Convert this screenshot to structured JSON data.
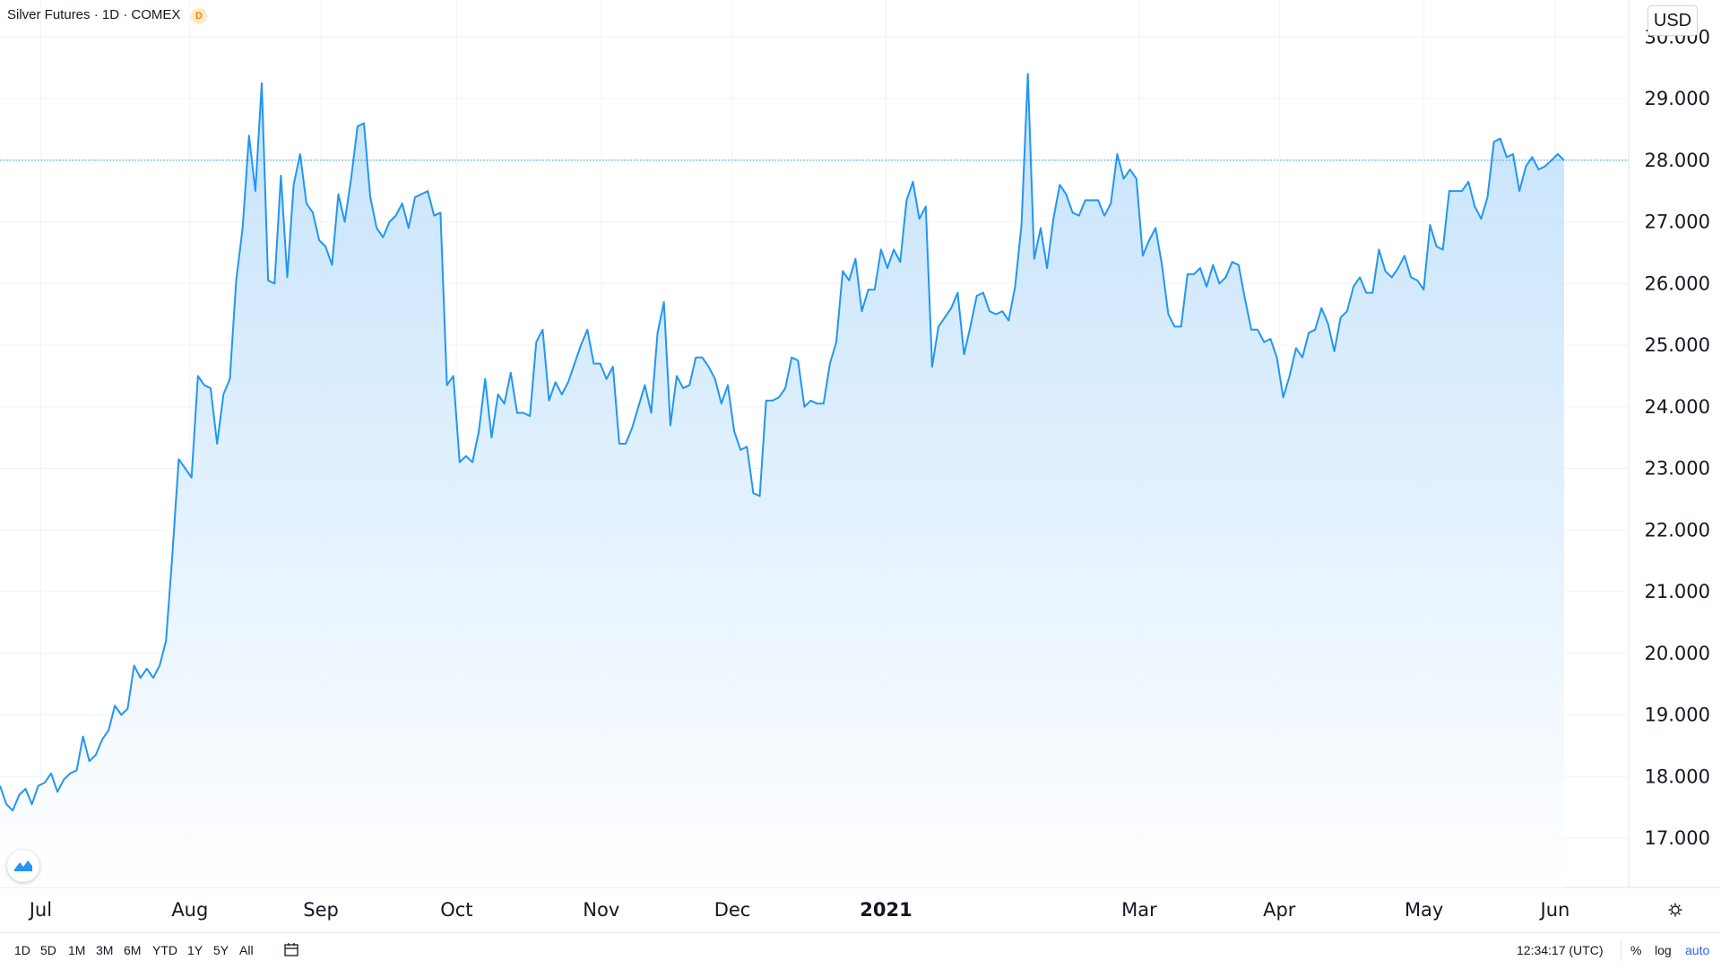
{
  "header": {
    "title": "Silver Futures · 1D · COMEX",
    "badge": "D",
    "currency": "USD"
  },
  "bottom_bar": {
    "ranges": [
      "1D",
      "5D",
      "1M",
      "3M",
      "6M",
      "YTD",
      "1Y",
      "5Y",
      "All"
    ],
    "time": "12:34:17 (UTC)",
    "options": [
      "%",
      "log",
      "auto"
    ],
    "active_option": "auto"
  },
  "icons": {
    "logo": "tradingview-logo-icon",
    "calendar": "calendar-range-icon",
    "settings": "gear-icon"
  },
  "colors": {
    "line": "#2196f3",
    "area_top": "#bbdefb",
    "area_bottom": "#ffffff",
    "last_price_line": "#2196f3",
    "grid": "#f0f3fa",
    "axis_text": "#131722"
  },
  "chart_data": {
    "type": "area",
    "ylim": [
      16.2,
      30.6
    ],
    "yticks": [
      "30.000",
      "29.000",
      "28.000",
      "27.000",
      "26.000",
      "25.000",
      "24.000",
      "23.000",
      "22.000",
      "21.000",
      "20.000",
      "19.000",
      "18.000",
      "17.000"
    ],
    "ytick_values": [
      30,
      29,
      28,
      27,
      26,
      25,
      24,
      23,
      22,
      21,
      20,
      19,
      18,
      17
    ],
    "xlabels": [
      {
        "label": "Jul",
        "date": "2020-07-01",
        "bold": false
      },
      {
        "label": "Aug",
        "date": "2020-08-03",
        "bold": false
      },
      {
        "label": "Sep",
        "date": "2020-09-01",
        "bold": false
      },
      {
        "label": "Oct",
        "date": "2020-10-01",
        "bold": false
      },
      {
        "label": "Nov",
        "date": "2020-11-02",
        "bold": false
      },
      {
        "label": "Dec",
        "date": "2020-12-01",
        "bold": false
      },
      {
        "label": "2021",
        "date": "2021-01-04",
        "bold": true
      },
      {
        "label": "Mar",
        "date": "2021-03-01",
        "bold": false
      },
      {
        "label": "Apr",
        "date": "2021-04-01",
        "bold": false
      },
      {
        "label": "May",
        "date": "2021-05-03",
        "bold": false
      },
      {
        "label": "Jun",
        "date": "2021-06-01",
        "bold": false
      }
    ],
    "last_value": 28.0,
    "series": [
      {
        "values": [
          17.85,
          17.55,
          17.45,
          17.7,
          17.8,
          17.55,
          17.85,
          17.9,
          18.05,
          17.75,
          17.95,
          18.05,
          18.1,
          18.65,
          18.25,
          18.35,
          18.6,
          18.75,
          19.15,
          19.0,
          19.1,
          19.8,
          19.6,
          19.75,
          19.6,
          19.8,
          20.2,
          21.6,
          23.15,
          23.0,
          22.85,
          24.5,
          24.35,
          24.3,
          23.4,
          24.2,
          24.45,
          26.05,
          26.9,
          28.4,
          27.5,
          29.25,
          26.05,
          26.0,
          27.75,
          26.1,
          27.6,
          28.1,
          27.3,
          27.15,
          26.7,
          26.6,
          26.3,
          27.45,
          27.0,
          27.7,
          28.55,
          28.6,
          27.4,
          26.9,
          26.75,
          27.0,
          27.1,
          27.3,
          26.9,
          27.4,
          27.45,
          27.5,
          27.1,
          27.15,
          24.35,
          24.5,
          23.1,
          23.2,
          23.1,
          23.6,
          24.45,
          23.5,
          24.2,
          24.05,
          24.55,
          23.9,
          23.9,
          23.85,
          25.05,
          25.25,
          24.1,
          24.4,
          24.2,
          24.4,
          24.7,
          25.0,
          25.25,
          24.7,
          24.7,
          24.45,
          24.65,
          23.4,
          23.4,
          23.65,
          24.0,
          24.35,
          23.9,
          25.2,
          25.7,
          23.7,
          24.5,
          24.3,
          24.35,
          24.8,
          24.8,
          24.65,
          24.45,
          24.05,
          24.35,
          23.6,
          23.3,
          23.35,
          22.6,
          22.55,
          24.1,
          24.1,
          24.15,
          24.3,
          24.8,
          24.75,
          24.0,
          24.1,
          24.05,
          24.05,
          24.7,
          25.05,
          26.2,
          26.05,
          26.4,
          25.55,
          25.9,
          25.9,
          26.55,
          26.25,
          26.55,
          26.35,
          27.35,
          27.65,
          27.05,
          27.25,
          24.65,
          25.3,
          25.45,
          25.6,
          25.85,
          24.85,
          25.3,
          25.8,
          25.85,
          25.55,
          25.5,
          25.55,
          25.4,
          25.95,
          26.95,
          29.4,
          26.4,
          26.9,
          26.25,
          27.05,
          27.6,
          27.45,
          27.15,
          27.1,
          27.35,
          27.35,
          27.35,
          27.1,
          27.3,
          28.1,
          27.7,
          27.85,
          27.7,
          26.45,
          26.7,
          26.9,
          26.3,
          25.5,
          25.3,
          25.3,
          26.15,
          26.15,
          26.25,
          25.95,
          26.3,
          26.0,
          26.1,
          26.35,
          26.3,
          25.75,
          25.25,
          25.25,
          25.05,
          25.1,
          24.8,
          24.15,
          24.5,
          24.95,
          24.8,
          25.2,
          25.25,
          25.6,
          25.35,
          24.9,
          25.45,
          25.55,
          25.95,
          26.1,
          25.85,
          25.85,
          26.55,
          26.2,
          26.1,
          26.25,
          26.45,
          26.1,
          26.05,
          25.9,
          26.95,
          26.6,
          26.55,
          27.5,
          27.5,
          27.5,
          27.65,
          27.25,
          27.05,
          27.4,
          28.3,
          28.35,
          28.05,
          28.1,
          27.5,
          27.9,
          28.05,
          27.85,
          27.9,
          28.0,
          28.1,
          28.0
        ]
      }
    ]
  }
}
